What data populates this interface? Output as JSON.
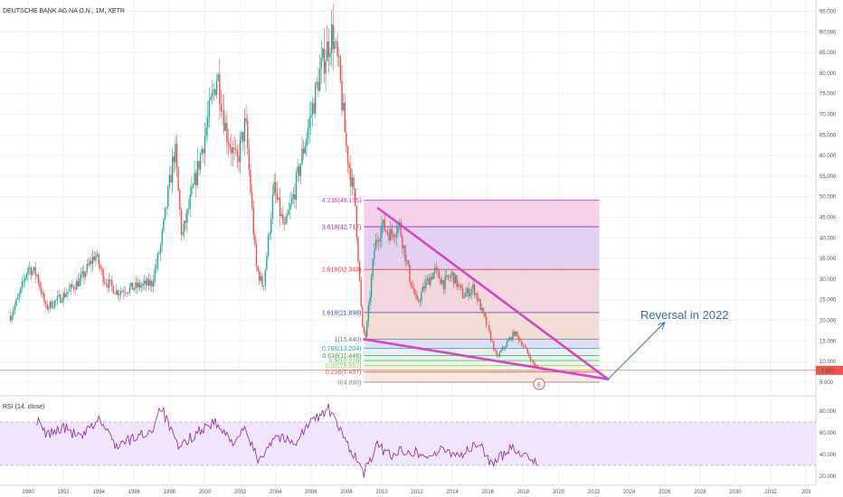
{
  "header": {
    "symbol_title": "DEUTSCHE BANK AG NA O.N., 1M, XETR"
  },
  "rsi_panel": {
    "title": "RSI (14, close)"
  },
  "price_axis": {
    "ticks": [
      "95.000",
      "90.000",
      "85.000",
      "80.000",
      "75.000",
      "70.000",
      "65.000",
      "60.000",
      "55.000",
      "50.000",
      "45.000",
      "40.000",
      "35.000",
      "30.000",
      "25.000",
      "20.000",
      "15.000",
      "10.000",
      "5.000"
    ]
  },
  "rsi_axis": {
    "ticks": [
      "80.000",
      "60.000",
      "40.000",
      "20.000"
    ]
  },
  "time_axis": {
    "ticks": [
      "1990",
      "1992",
      "1994",
      "1996",
      "1998",
      "2000",
      "2002",
      "2004",
      "2006",
      "2008",
      "2010",
      "2012",
      "2014",
      "2016",
      "2018",
      "2020",
      "2022",
      "2024",
      "2026",
      "2028",
      "2030",
      "2032",
      "203"
    ]
  },
  "last_price": {
    "label": "7.862",
    "color": "#ef5350"
  },
  "fib_labels": [
    "4.236(49.155)",
    "3.618(42.717)",
    "2.618(32.348)",
    "1.618(21.898)",
    "1(15.440)",
    "0.786(13.204)",
    "0.618(11.448)",
    "0.5(10.220)",
    "0.382(8.992)",
    "0.236(7.457)",
    "0(4.990)"
  ],
  "annotation": {
    "text": "Reversal in 2022"
  },
  "event_marker": {
    "label": "E"
  },
  "chart_data": {
    "type": "candlestick",
    "title": "DEUTSCHE BANK AG NA O.N., 1M, XETR",
    "ylim": [
      3,
      96
    ],
    "xlim": [
      1988.0,
      2034.0
    ],
    "price_path": [
      [
        1989.0,
        21
      ],
      [
        1989.5,
        26
      ],
      [
        1990.0,
        33
      ],
      [
        1990.5,
        31
      ],
      [
        1991.0,
        23
      ],
      [
        1992.0,
        26
      ],
      [
        1993.0,
        30
      ],
      [
        1993.8,
        36
      ],
      [
        1994.3,
        30
      ],
      [
        1995.0,
        27
      ],
      [
        1996.0,
        28
      ],
      [
        1997.0,
        29
      ],
      [
        1997.5,
        38
      ],
      [
        1998.3,
        62
      ],
      [
        1998.7,
        40
      ],
      [
        1999.5,
        55
      ],
      [
        2000.0,
        65
      ],
      [
        2000.7,
        80
      ],
      [
        2001.2,
        66
      ],
      [
        2001.8,
        58
      ],
      [
        2002.3,
        68
      ],
      [
        2002.9,
        33
      ],
      [
        2003.3,
        28
      ],
      [
        2003.9,
        52
      ],
      [
        2004.5,
        42
      ],
      [
        2005.0,
        50
      ],
      [
        2005.5,
        60
      ],
      [
        2006.0,
        70
      ],
      [
        2006.5,
        80
      ],
      [
        2007.2,
        90
      ],
      [
        2007.6,
        80
      ],
      [
        2008.0,
        62
      ],
      [
        2008.5,
        48
      ],
      [
        2008.9,
        18
      ],
      [
        2009.1,
        16
      ],
      [
        2009.6,
        38
      ],
      [
        2010.0,
        43
      ],
      [
        2010.5,
        41
      ],
      [
        2011.0,
        43
      ],
      [
        2011.6,
        30
      ],
      [
        2012.0,
        24
      ],
      [
        2012.5,
        29
      ],
      [
        2013.0,
        32
      ],
      [
        2013.5,
        29
      ],
      [
        2014.0,
        31
      ],
      [
        2014.6,
        26
      ],
      [
        2015.2,
        28
      ],
      [
        2016.0,
        18
      ],
      [
        2016.5,
        11
      ],
      [
        2017.0,
        14
      ],
      [
        2017.5,
        17
      ],
      [
        2018.0,
        14
      ],
      [
        2018.5,
        10
      ],
      [
        2018.9,
        7.9
      ]
    ],
    "rsi_path": [
      [
        1990.5,
        72
      ],
      [
        1991.0,
        58
      ],
      [
        1992.0,
        65
      ],
      [
        1993.0,
        55
      ],
      [
        1994.0,
        73
      ],
      [
        1995.0,
        48
      ],
      [
        1996.0,
        55
      ],
      [
        1997.0,
        62
      ],
      [
        1997.5,
        85
      ],
      [
        1998.5,
        45
      ],
      [
        1999.5,
        60
      ],
      [
        2000.5,
        70
      ],
      [
        2001.5,
        52
      ],
      [
        2002.3,
        62
      ],
      [
        2003.0,
        35
      ],
      [
        2004.0,
        58
      ],
      [
        2005.0,
        50
      ],
      [
        2006.0,
        70
      ],
      [
        2007.0,
        82
      ],
      [
        2007.7,
        60
      ],
      [
        2008.5,
        38
      ],
      [
        2009.0,
        22
      ],
      [
        2009.7,
        48
      ],
      [
        2010.5,
        40
      ],
      [
        2011.5,
        45
      ],
      [
        2012.5,
        38
      ],
      [
        2013.5,
        44
      ],
      [
        2014.5,
        40
      ],
      [
        2015.5,
        50
      ],
      [
        2016.3,
        30
      ],
      [
        2017.3,
        48
      ],
      [
        2018.0,
        40
      ],
      [
        2018.9,
        33
      ]
    ],
    "last_price": 7.862,
    "fibonacci": {
      "x_start": 2009.0,
      "x_end": 2022.3,
      "levels": [
        {
          "ratio": 4.236,
          "price": 49.155,
          "fill": "#f3c8e6",
          "line": "#d147c4"
        },
        {
          "ratio": 3.618,
          "price": 42.717,
          "fill": "#e2c8f0",
          "line": "#9c27b0"
        },
        {
          "ratio": 2.618,
          "price": 32.348,
          "fill": "#f2cfd8",
          "line": "#e53935"
        },
        {
          "ratio": 1.618,
          "price": 21.898,
          "fill": "#f0d8cf",
          "line": "#3949ab"
        },
        {
          "ratio": 1,
          "price": 15.44,
          "fill": "#d8d8f4",
          "line": "#757575"
        },
        {
          "ratio": 0.786,
          "price": 13.204,
          "fill": "#e8eaf6",
          "line": "#26a69a"
        },
        {
          "ratio": 0.618,
          "price": 11.448,
          "fill": "#dff2ee",
          "line": "#43a047"
        },
        {
          "ratio": 0.5,
          "price": 10.22,
          "fill": "#e4f4e0",
          "line": "#66bb6a"
        },
        {
          "ratio": 0.382,
          "price": 8.992,
          "fill": "#eef6e0",
          "line": "#9ccc65"
        },
        {
          "ratio": 0.236,
          "price": 7.457,
          "fill": "#fbe4de",
          "line": "#ef5350"
        },
        {
          "ratio": 0,
          "price": 4.99,
          "fill": "#fbe4de",
          "line": "#888888"
        }
      ]
    },
    "trendlines": [
      {
        "from": [
          2009.0,
          15.4
        ],
        "to": [
          2022.8,
          5.7
        ],
        "color": "#d147c4"
      },
      {
        "from": [
          2009.8,
          47.2
        ],
        "to": [
          2022.8,
          5.7
        ],
        "color": "#d147c4"
      }
    ],
    "arrow": {
      "from": [
        2022.8,
        5.7
      ],
      "to": [
        2026.0,
        19.5
      ],
      "color": "#3a6fa0"
    },
    "rsi_bands": {
      "upper": 70,
      "lower": 30,
      "ylim": [
        15,
        90
      ]
    }
  }
}
